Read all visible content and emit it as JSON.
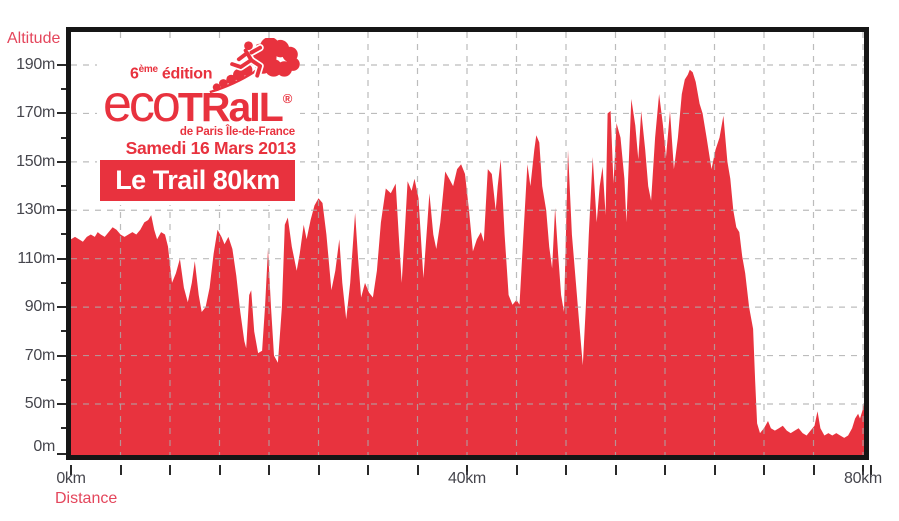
{
  "colors": {
    "area_red": "#e8333e",
    "logo_red": "#e8323e",
    "axis_title_red": "#e4465c",
    "axis_text": "#46464d",
    "border_black": "#161616",
    "gridline_gray": "#ababab"
  },
  "axes": {
    "y_title": "Altitude",
    "x_title": "Distance"
  },
  "logo": {
    "edition_num": "6",
    "edition_sup": "ème",
    "edition_word": " édition",
    "brand_eco": "eco",
    "brand_trail": "TRaIL",
    "registered": "®",
    "region": "de Paris Île-de-France",
    "date": "Samedi 16 Mars 2013",
    "race": "Le Trail 80km"
  },
  "chart_data": {
    "type": "area",
    "title": "EcoTrail de Paris Île-de-France — Le Trail 80km — profil altimétrique",
    "xlabel": "Distance",
    "ylabel": "Altitude",
    "x_unit": "km",
    "y_unit": "m",
    "xlim": [
      0,
      80.1
    ],
    "ylim_drawn": [
      30,
      190
    ],
    "grid": "dashed",
    "x_tick_step_km": 5,
    "x_tick_labels": [
      {
        "km": 0,
        "label": "0km"
      },
      {
        "km": 40,
        "label": "40km"
      },
      {
        "km": 80,
        "label": "80km"
      }
    ],
    "y_major_ticks_m": [
      190,
      170,
      150,
      130,
      110,
      90,
      70,
      50
    ],
    "y_minor_ticks_m": [
      180,
      160,
      140,
      120,
      100,
      80,
      60,
      40
    ],
    "y_baseline_label": "0m",
    "points": [
      [
        0,
        118
      ],
      [
        0.4,
        119
      ],
      [
        0.8,
        118
      ],
      [
        1.2,
        117
      ],
      [
        1.6,
        119
      ],
      [
        2,
        120
      ],
      [
        2.4,
        119
      ],
      [
        2.7,
        121
      ],
      [
        3,
        120
      ],
      [
        3.4,
        119
      ],
      [
        3.8,
        121
      ],
      [
        4.2,
        123
      ],
      [
        4.6,
        122
      ],
      [
        5,
        120
      ],
      [
        5.4,
        119
      ],
      [
        5.8,
        120
      ],
      [
        6.2,
        121
      ],
      [
        6.6,
        120
      ],
      [
        7,
        122
      ],
      [
        7.4,
        125
      ],
      [
        7.8,
        126
      ],
      [
        8.1,
        128
      ],
      [
        8.4,
        122
      ],
      [
        8.7,
        118
      ],
      [
        9.1,
        121
      ],
      [
        9.5,
        120
      ],
      [
        9.8,
        115
      ],
      [
        10.2,
        100
      ],
      [
        10.6,
        104
      ],
      [
        11,
        110
      ],
      [
        11.4,
        98
      ],
      [
        11.8,
        92
      ],
      [
        12.2,
        100
      ],
      [
        12.5,
        109
      ],
      [
        12.9,
        95
      ],
      [
        13.2,
        88
      ],
      [
        13.6,
        90
      ],
      [
        14,
        98
      ],
      [
        14.4,
        112
      ],
      [
        14.8,
        122
      ],
      [
        15.2,
        119
      ],
      [
        15.5,
        116
      ],
      [
        15.9,
        119
      ],
      [
        16.3,
        114
      ],
      [
        16.7,
        103
      ],
      [
        17.1,
        88
      ],
      [
        17.5,
        76
      ],
      [
        17.7,
        73
      ],
      [
        18,
        95
      ],
      [
        18.2,
        97
      ],
      [
        18.5,
        80
      ],
      [
        18.9,
        71
      ],
      [
        19.3,
        72
      ],
      [
        19.6,
        90
      ],
      [
        19.9,
        114
      ],
      [
        20.2,
        90
      ],
      [
        20.5,
        70
      ],
      [
        20.9,
        67
      ],
      [
        21.3,
        90
      ],
      [
        21.6,
        124
      ],
      [
        21.9,
        127
      ],
      [
        22.3,
        115
      ],
      [
        22.8,
        105
      ],
      [
        23.1,
        112
      ],
      [
        23.5,
        124
      ],
      [
        23.8,
        118
      ],
      [
        24.2,
        126
      ],
      [
        24.6,
        132
      ],
      [
        25,
        135
      ],
      [
        25.4,
        133
      ],
      [
        25.8,
        120
      ],
      [
        26.3,
        97
      ],
      [
        26.7,
        105
      ],
      [
        27.1,
        118
      ],
      [
        27.4,
        100
      ],
      [
        27.8,
        85
      ],
      [
        28.2,
        100
      ],
      [
        28.7,
        129
      ],
      [
        29,
        110
      ],
      [
        29.3,
        94
      ],
      [
        29.7,
        100
      ],
      [
        30.1,
        96
      ],
      [
        30.5,
        94
      ],
      [
        30.9,
        105
      ],
      [
        31.3,
        125
      ],
      [
        31.8,
        139
      ],
      [
        32.3,
        137
      ],
      [
        32.8,
        141
      ],
      [
        33.1,
        120
      ],
      [
        33.4,
        100
      ],
      [
        33.7,
        120
      ],
      [
        34,
        142
      ],
      [
        34.4,
        138
      ],
      [
        34.7,
        143
      ],
      [
        35.1,
        135
      ],
      [
        35.6,
        102
      ],
      [
        36,
        125
      ],
      [
        36.2,
        137
      ],
      [
        36.6,
        120
      ],
      [
        36.9,
        114
      ],
      [
        37.3,
        125
      ],
      [
        37.8,
        146
      ],
      [
        38.2,
        143
      ],
      [
        38.6,
        140
      ],
      [
        39,
        147
      ],
      [
        39.4,
        149
      ],
      [
        39.8,
        145
      ],
      [
        40.2,
        130
      ],
      [
        40.6,
        113
      ],
      [
        41,
        118
      ],
      [
        41.4,
        121
      ],
      [
        41.7,
        117
      ],
      [
        42.1,
        147
      ],
      [
        42.5,
        145
      ],
      [
        42.9,
        130
      ],
      [
        43.1,
        140
      ],
      [
        43.4,
        151
      ],
      [
        43.8,
        120
      ],
      [
        44.2,
        95
      ],
      [
        44.6,
        91
      ],
      [
        45,
        93
      ],
      [
        45.3,
        91
      ],
      [
        45.7,
        120
      ],
      [
        46.1,
        149
      ],
      [
        46.4,
        140
      ],
      [
        46.8,
        155
      ],
      [
        47,
        161
      ],
      [
        47.3,
        158
      ],
      [
        47.6,
        140
      ],
      [
        48,
        130
      ],
      [
        48.3,
        115
      ],
      [
        48.6,
        106
      ],
      [
        48.9,
        131
      ],
      [
        49.2,
        112
      ],
      [
        49.5,
        95
      ],
      [
        49.8,
        88
      ],
      [
        50.2,
        155
      ],
      [
        50.6,
        120
      ],
      [
        51,
        100
      ],
      [
        51.3,
        85
      ],
      [
        51.7,
        66
      ],
      [
        52,
        90
      ],
      [
        52.3,
        120
      ],
      [
        52.7,
        152
      ],
      [
        53.1,
        125
      ],
      [
        53.4,
        140
      ],
      [
        53.7,
        148
      ],
      [
        54,
        128
      ],
      [
        54.2,
        170
      ],
      [
        54.5,
        171
      ],
      [
        54.8,
        141
      ],
      [
        55.1,
        166
      ],
      [
        55.5,
        160
      ],
      [
        55.9,
        143
      ],
      [
        56.1,
        125
      ],
      [
        56.6,
        176
      ],
      [
        57,
        165
      ],
      [
        57.3,
        151
      ],
      [
        57.6,
        171
      ],
      [
        58,
        155
      ],
      [
        58.3,
        140
      ],
      [
        58.6,
        134
      ],
      [
        59,
        160
      ],
      [
        59.4,
        178
      ],
      [
        59.8,
        165
      ],
      [
        60.1,
        152
      ],
      [
        60.5,
        171
      ],
      [
        60.9,
        147
      ],
      [
        61.3,
        160
      ],
      [
        61.7,
        178
      ],
      [
        62,
        184
      ],
      [
        62.3,
        186
      ],
      [
        62.5,
        188
      ],
      [
        62.8,
        187
      ],
      [
        63.1,
        183
      ],
      [
        63.5,
        174
      ],
      [
        63.8,
        170
      ],
      [
        64.2,
        160
      ],
      [
        64.7,
        147
      ],
      [
        65.1,
        155
      ],
      [
        65.5,
        160
      ],
      [
        65.9,
        169
      ],
      [
        66.3,
        150
      ],
      [
        66.6,
        143
      ],
      [
        66.9,
        130
      ],
      [
        67.2,
        123
      ],
      [
        67.5,
        121
      ],
      [
        67.8,
        111
      ],
      [
        68.1,
        104
      ],
      [
        68.5,
        90
      ],
      [
        68.9,
        81
      ],
      [
        69.1,
        60
      ],
      [
        69.3,
        42
      ],
      [
        69.6,
        38
      ],
      [
        70,
        40
      ],
      [
        70.4,
        43
      ],
      [
        70.7,
        40
      ],
      [
        71.1,
        39
      ],
      [
        71.5,
        40
      ],
      [
        71.9,
        41
      ],
      [
        72.3,
        39
      ],
      [
        72.7,
        38
      ],
      [
        73.1,
        39
      ],
      [
        73.5,
        40
      ],
      [
        73.9,
        38
      ],
      [
        74.3,
        37
      ],
      [
        74.7,
        39
      ],
      [
        75.1,
        41
      ],
      [
        75.4,
        47
      ],
      [
        75.7,
        40
      ],
      [
        76.1,
        37
      ],
      [
        76.5,
        38
      ],
      [
        76.9,
        37
      ],
      [
        77.3,
        38
      ],
      [
        77.7,
        37
      ],
      [
        78.1,
        36
      ],
      [
        78.5,
        37
      ],
      [
        78.9,
        40
      ],
      [
        79.2,
        44
      ],
      [
        79.5,
        46
      ],
      [
        79.7,
        44
      ],
      [
        80,
        48
      ],
      [
        80.1,
        50
      ]
    ]
  }
}
